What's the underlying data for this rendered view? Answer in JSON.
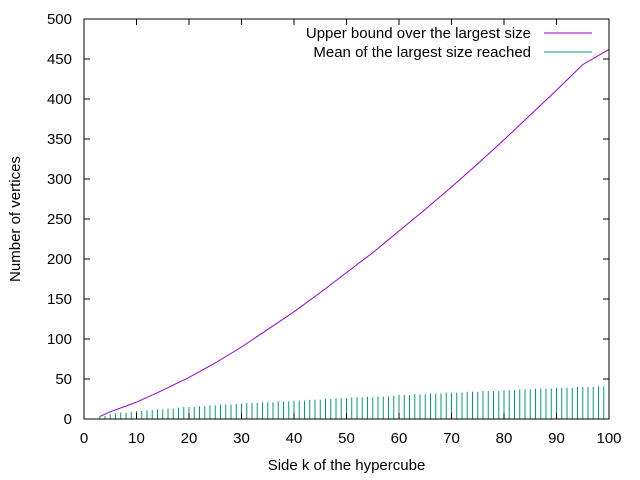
{
  "chart_data": {
    "type": "line",
    "xlabel": "Side k of the hypercube",
    "ylabel": "Number of vertices",
    "xlim": [
      0,
      100
    ],
    "ylim": [
      0,
      500
    ],
    "xticks": [
      0,
      10,
      20,
      30,
      40,
      50,
      60,
      70,
      80,
      90,
      100
    ],
    "yticks": [
      0,
      50,
      100,
      150,
      200,
      250,
      300,
      350,
      400,
      450,
      500
    ],
    "grid": false,
    "legend_position": "top-right",
    "series": [
      {
        "name": "Upper bound over the largest size",
        "style": "line",
        "color": "#9400d3",
        "x": [
          3,
          5,
          10,
          15,
          20,
          25,
          30,
          35,
          40,
          45,
          50,
          55,
          60,
          65,
          70,
          75,
          80,
          85,
          90,
          95,
          100
        ],
        "y": [
          3,
          9,
          21,
          36,
          52,
          70,
          90,
          112,
          134,
          158,
          183,
          208,
          235,
          262,
          290,
          319,
          349,
          380,
          411,
          443,
          462
        ]
      },
      {
        "name": "Mean of the largest size reached",
        "style": "impulses",
        "color": "#009e73",
        "x": [
          3,
          4,
          5,
          6,
          7,
          8,
          9,
          10,
          11,
          12,
          13,
          14,
          15,
          16,
          17,
          18,
          19,
          20,
          21,
          22,
          23,
          24,
          25,
          26,
          27,
          28,
          29,
          30,
          31,
          32,
          33,
          34,
          35,
          36,
          37,
          38,
          39,
          40,
          41,
          42,
          43,
          44,
          45,
          46,
          47,
          48,
          49,
          50,
          51,
          52,
          53,
          54,
          55,
          56,
          57,
          58,
          59,
          60,
          61,
          62,
          63,
          64,
          65,
          66,
          67,
          68,
          69,
          70,
          71,
          72,
          73,
          74,
          75,
          76,
          77,
          78,
          79,
          80,
          81,
          82,
          83,
          84,
          85,
          86,
          87,
          88,
          89,
          90,
          91,
          92,
          93,
          94,
          95,
          96,
          97,
          98,
          99,
          100
        ],
        "y": [
          3,
          4,
          6,
          7,
          8,
          8,
          9,
          10,
          10,
          11,
          11,
          12,
          12,
          13,
          13,
          14,
          15,
          15,
          15,
          16,
          16,
          17,
          17,
          18,
          18,
          18,
          19,
          19,
          20,
          20,
          20,
          21,
          21,
          21,
          22,
          22,
          22,
          23,
          23,
          23,
          24,
          24,
          24,
          25,
          25,
          26,
          26,
          26,
          27,
          27,
          27,
          28,
          27,
          28,
          28,
          28,
          29,
          30,
          30,
          30,
          31,
          31,
          31,
          32,
          32,
          32,
          33,
          33,
          33,
          33,
          34,
          34,
          34,
          35,
          35,
          35,
          35,
          36,
          36,
          36,
          37,
          37,
          37,
          38,
          38,
          38,
          38,
          39,
          39,
          39,
          39,
          40,
          40,
          40,
          40,
          41,
          41,
          42
        ]
      }
    ]
  }
}
